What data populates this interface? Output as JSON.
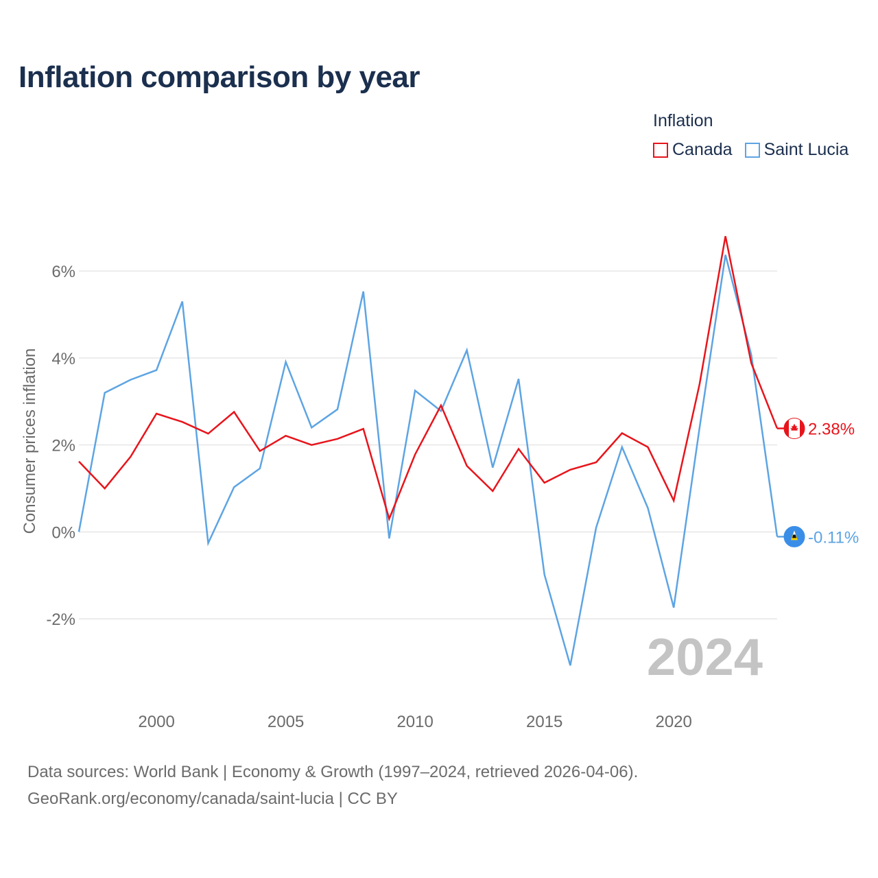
{
  "title": "Inflation comparison by year",
  "legend": {
    "title": "Inflation",
    "items": [
      {
        "name": "Canada",
        "color": "#e8141b"
      },
      {
        "name": "Saint Lucia",
        "color": "#5da4e3"
      }
    ]
  },
  "footer": {
    "line1": "Data sources: World Bank | Economy & Growth (1997–2024, retrieved 2026-04-06).",
    "line2": "GeoRank.org/economy/canada/saint-lucia | CC BY"
  },
  "chart_data": {
    "type": "line",
    "title": "Inflation comparison by year",
    "ylabel": "Consumer prices inflation",
    "xlabel": "",
    "year_watermark": "2024",
    "x": [
      1997,
      1998,
      1999,
      2000,
      2001,
      2002,
      2003,
      2004,
      2005,
      2006,
      2007,
      2008,
      2009,
      2010,
      2011,
      2012,
      2013,
      2014,
      2015,
      2016,
      2017,
      2018,
      2019,
      2020,
      2021,
      2022,
      2023,
      2024
    ],
    "xlim": [
      1997,
      2024
    ],
    "ylim": [
      -3.7,
      7.5
    ],
    "y_ticks": [
      -2,
      0,
      2,
      4,
      6
    ],
    "y_tick_labels": [
      "-2%",
      "0%",
      "2%",
      "4%",
      "6%"
    ],
    "x_ticks": [
      2000,
      2005,
      2010,
      2015,
      2020
    ],
    "x_tick_labels": [
      "2000",
      "2005",
      "2010",
      "2015",
      "2020"
    ],
    "series": [
      {
        "name": "Canada",
        "color": "#e8141b",
        "end_label": "2.38%",
        "values": [
          1.62,
          1.0,
          1.73,
          2.72,
          2.53,
          2.26,
          2.76,
          1.86,
          2.21,
          2.0,
          2.14,
          2.37,
          0.3,
          1.78,
          2.91,
          1.52,
          0.94,
          1.91,
          1.13,
          1.43,
          1.6,
          2.27,
          1.95,
          0.72,
          3.4,
          6.8,
          3.88,
          2.38
        ]
      },
      {
        "name": "Saint Lucia",
        "color": "#5da4e3",
        "end_label": "-0.11%",
        "values": [
          0.0,
          3.2,
          3.5,
          3.72,
          5.3,
          -0.26,
          1.03,
          1.46,
          3.91,
          2.4,
          2.82,
          5.53,
          -0.15,
          3.25,
          2.78,
          4.18,
          1.48,
          3.52,
          -0.98,
          -3.07,
          0.1,
          1.95,
          0.55,
          -1.74,
          2.4,
          6.37,
          4.07,
          -0.11
        ]
      }
    ]
  }
}
